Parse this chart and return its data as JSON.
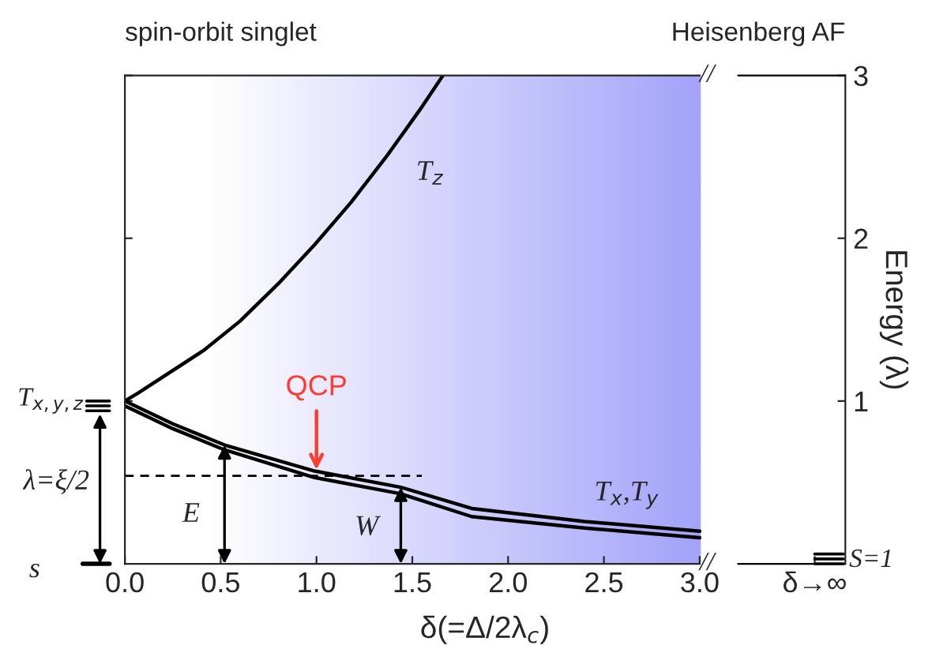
{
  "chart_data": {
    "type": "line",
    "xlabel": "δ(=Δ/2λ$_{c}$)",
    "ylabel": "Energy (λ)",
    "series": [
      {
        "name": null,
        "color": "#000000",
        "x": [
          0,
          0.07,
          0.41,
          0.6,
          0.8,
          0.99,
          1.18,
          1.37,
          1.54,
          1.66
        ],
        "values": [
          1.0,
          1.05,
          1.31,
          1.49,
          1.72,
          1.96,
          2.22,
          2.51,
          2.79,
          3.0
        ]
      },
      {
        "name": null,
        "color": "#000000",
        "x": [
          0,
          0.25,
          0.52,
          0.99,
          1.44,
          1.81,
          2.4,
          3.0
        ],
        "values": [
          1.0,
          0.86,
          0.73,
          0.57,
          0.47,
          0.34,
          0.26,
          0.2
        ]
      },
      {
        "name": null,
        "color": "#000000",
        "x": [
          0,
          0.25,
          0.52,
          0.99,
          1.44,
          1.81,
          2.4,
          3.0
        ],
        "values": [
          0.97,
          0.83,
          0.7,
          0.53,
          0.43,
          0.29,
          0.22,
          0.16
        ]
      },
      {
        "name": null,
        "color": "#000000",
        "x": [
          0,
          1.55
        ],
        "values": [
          0.54,
          0.54
        ],
        "line_style": "dashed"
      }
    ],
    "annotations": [
      "T$_{z}$",
      "T$_{x}$,T$_{y}$",
      "E",
      "W",
      {
        "text": "QCP",
        "x": 1.0,
        "y": 0.55
      },
      "spin-orbit singlet",
      "Heisenberg AF",
      "T$_{x,y,z}$",
      "s",
      "λ=ξ/2",
      "S=1",
      "//",
      "//"
    ],
    "bands": [
      {
        "axis": "x",
        "from": 0.45,
        "to": 3.0,
        "color": "#a3a3fa"
      }
    ],
    "xlim": [
      0,
      3.76
    ],
    "ylim": [
      0,
      3
    ],
    "xticks": [
      {
        "value": 0,
        "label": "0.0"
      },
      0.5,
      {
        "value": 1,
        "label": "1.0"
      },
      1.5,
      {
        "value": 2,
        "label": "2.0"
      },
      2.5,
      {
        "value": 3,
        "label": "3.0"
      },
      {
        "value": 3.6,
        "label": "δ→∞"
      }
    ],
    "yticks": [
      1,
      2,
      3
    ],
    "grid": false,
    "legend": false,
    "marker": "none",
    "line_style": "solid"
  }
}
